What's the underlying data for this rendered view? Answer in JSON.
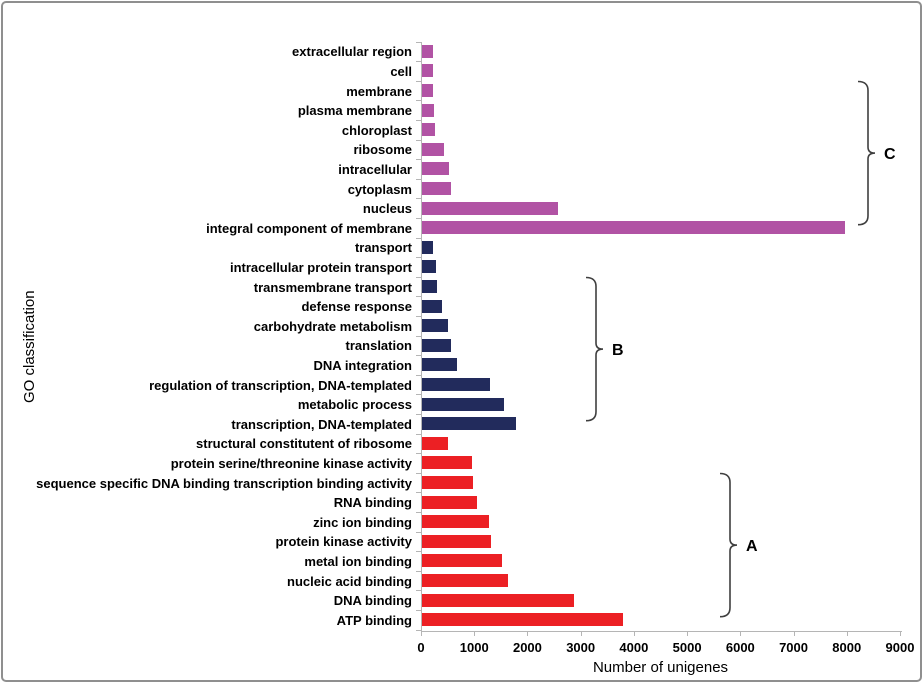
{
  "chart_data": {
    "type": "bar",
    "orientation": "horizontal",
    "xlabel": "Number of unigenes",
    "ylabel": "GO classification",
    "xlim": [
      0,
      9000
    ],
    "x_ticks": [
      0,
      1000,
      2000,
      3000,
      4000,
      5000,
      6000,
      7000,
      8000,
      9000
    ],
    "grid": false,
    "legend": "none",
    "bars": [
      {
        "label": "extracellular region",
        "value": 200,
        "group": "cellular_component"
      },
      {
        "label": "cell",
        "value": 200,
        "group": "cellular_component"
      },
      {
        "label": "membrane",
        "value": 215,
        "group": "cellular_component"
      },
      {
        "label": "plasma membrane",
        "value": 230,
        "group": "cellular_component"
      },
      {
        "label": "chloroplast",
        "value": 250,
        "group": "cellular_component"
      },
      {
        "label": "ribosome",
        "value": 410,
        "group": "cellular_component"
      },
      {
        "label": "intracellular",
        "value": 510,
        "group": "cellular_component"
      },
      {
        "label": "cytoplasm",
        "value": 545,
        "group": "cellular_component"
      },
      {
        "label": "nucleus",
        "value": 2550,
        "group": "cellular_component"
      },
      {
        "label": "integral component of membrane",
        "value": 7950,
        "group": "cellular_component"
      },
      {
        "label": "transport",
        "value": 200,
        "group": "biological_process"
      },
      {
        "label": "intracellular protein transport",
        "value": 260,
        "group": "biological_process"
      },
      {
        "label": "transmembrane transport",
        "value": 280,
        "group": "biological_process"
      },
      {
        "label": "defense response",
        "value": 370,
        "group": "biological_process"
      },
      {
        "label": "carbohydrate metabolism",
        "value": 480,
        "group": "biological_process"
      },
      {
        "label": "translation",
        "value": 550,
        "group": "biological_process"
      },
      {
        "label": "DNA integration",
        "value": 660,
        "group": "biological_process"
      },
      {
        "label": "regulation of transcription, DNA-templated",
        "value": 1280,
        "group": "biological_process"
      },
      {
        "label": "metabolic process",
        "value": 1550,
        "group": "biological_process"
      },
      {
        "label": "transcription, DNA-templated",
        "value": 1760,
        "group": "biological_process"
      },
      {
        "label": "structural constitutent of ribosome",
        "value": 480,
        "group": "molecular_function"
      },
      {
        "label": "protein serine/threonine kinase activity",
        "value": 940,
        "group": "molecular_function"
      },
      {
        "label": "sequence specific DNA binding transcription binding activity",
        "value": 960,
        "group": "molecular_function"
      },
      {
        "label": "RNA binding",
        "value": 1040,
        "group": "molecular_function"
      },
      {
        "label": "zinc ion binding",
        "value": 1250,
        "group": "molecular_function"
      },
      {
        "label": "protein kinase activity",
        "value": 1300,
        "group": "molecular_function"
      },
      {
        "label": "metal ion binding",
        "value": 1500,
        "group": "molecular_function"
      },
      {
        "label": "nucleic acid binding",
        "value": 1620,
        "group": "molecular_function"
      },
      {
        "label": "DNA binding",
        "value": 2860,
        "group": "molecular_function"
      },
      {
        "label": "ATP binding",
        "value": 3780,
        "group": "molecular_function"
      }
    ],
    "group_colors": {
      "cellular_component": "#b153a4",
      "biological_process": "#222b5c",
      "molecular_function": "#ec2024"
    },
    "brackets": [
      {
        "label": "C",
        "from_index": 2,
        "to_index": 9
      },
      {
        "label": "B",
        "from_index": 12,
        "to_index": 19
      },
      {
        "label": "A",
        "from_index": 22,
        "to_index": 29
      }
    ],
    "colors": {
      "axis": "#b5b5b5",
      "bracket": "#3f3f3f",
      "text": "#000000",
      "frame_border": "#8f8f8f"
    }
  }
}
